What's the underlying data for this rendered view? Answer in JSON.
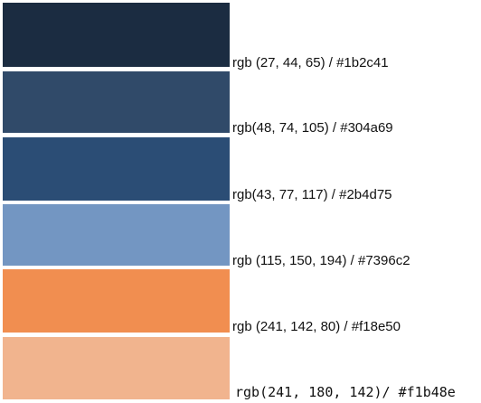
{
  "swatches": [
    {
      "label": "rgb (27, 44, 65) / #1b2c41",
      "color": "#1b2c41"
    },
    {
      "label": "rgb(48, 74, 105) / #304a69",
      "color": "#304a69"
    },
    {
      "label": "rgb(43, 77, 117) / #2b4d75",
      "color": "#2b4d75"
    },
    {
      "label": "rgb (115, 150, 194) / #7396c2",
      "color": "#7396c2"
    },
    {
      "label": "rgb (241, 142, 80) / #f18e50",
      "color": "#f18e50"
    },
    {
      "label": "rgb(241, 180, 142)/ #f1b48e",
      "color": "#f1b48e"
    }
  ]
}
